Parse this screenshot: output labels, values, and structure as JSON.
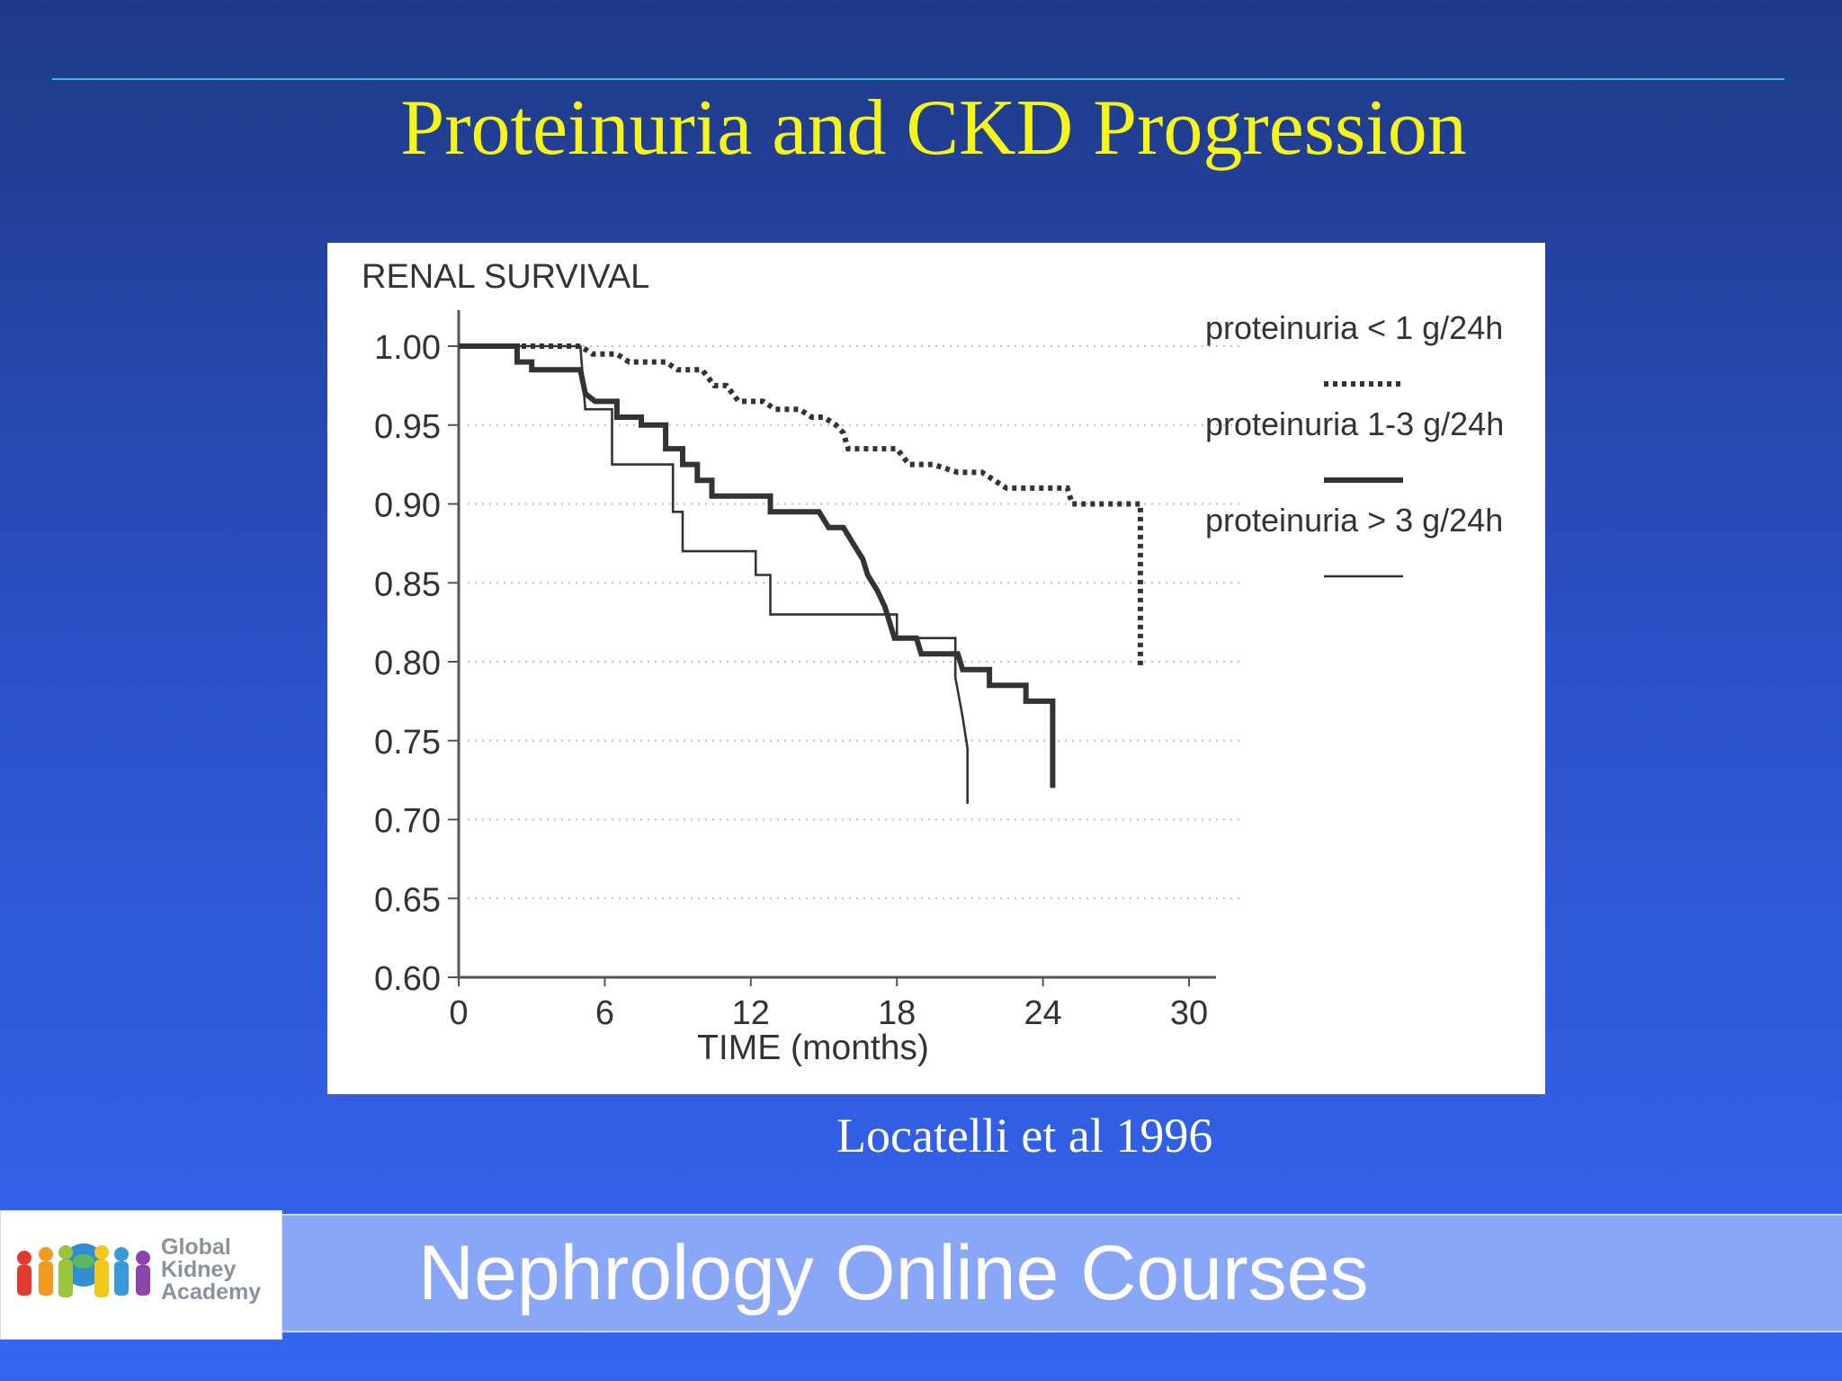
{
  "slide": {
    "title": "Proteinuria and CKD Progression",
    "citation": "Locatelli et al 1996",
    "footer": "Nephrology Online Courses",
    "logo": {
      "line1": "Global",
      "line2": "Kidney",
      "line3": "Academy",
      "icon": "people-circle-icon"
    },
    "colors": {
      "title": "#f5f51a",
      "rule": "#2cc4d8",
      "footer_band": "#8aa6f6"
    }
  },
  "chart_data": {
    "type": "line",
    "title": "RENAL SURVIVAL",
    "xlabel": "TIME (months)",
    "ylabel": "",
    "xlim": [
      0,
      30
    ],
    "ylim": [
      0.6,
      1.0
    ],
    "x_ticks": [
      "0",
      "6",
      "12",
      "18",
      "24",
      "30"
    ],
    "y_ticks": [
      "1.00",
      "0.95",
      "0.90",
      "0.85",
      "0.80",
      "0.75",
      "0.70",
      "0.65",
      "0.60"
    ],
    "grid": "dotted-horizontal",
    "legend_position": "right",
    "series": [
      {
        "name": "proteinuria < 1 g/24h",
        "style": "dotted",
        "points": [
          [
            0,
            1.0
          ],
          [
            5,
            1.0
          ],
          [
            5.5,
            0.995
          ],
          [
            6.5,
            0.995
          ],
          [
            7,
            0.99
          ],
          [
            8.5,
            0.99
          ],
          [
            9,
            0.985
          ],
          [
            10,
            0.985
          ],
          [
            10.5,
            0.975
          ],
          [
            11,
            0.975
          ],
          [
            11.5,
            0.965
          ],
          [
            12.5,
            0.965
          ],
          [
            13,
            0.96
          ],
          [
            14,
            0.96
          ],
          [
            14.5,
            0.955
          ],
          [
            15,
            0.955
          ],
          [
            15.5,
            0.95
          ],
          [
            15.8,
            0.945
          ],
          [
            16,
            0.935
          ],
          [
            18,
            0.935
          ],
          [
            18.5,
            0.925
          ],
          [
            19.5,
            0.925
          ],
          [
            20.5,
            0.92
          ],
          [
            21.5,
            0.92
          ],
          [
            22,
            0.915
          ],
          [
            22.5,
            0.91
          ],
          [
            25,
            0.91
          ],
          [
            25.2,
            0.9
          ],
          [
            26,
            0.9
          ],
          [
            26.2,
            0.9
          ],
          [
            28,
            0.9
          ],
          [
            28,
            0.795
          ]
        ]
      },
      {
        "name": "proteinuria 1-3 g/24h",
        "style": "thick",
        "points": [
          [
            0,
            1.0
          ],
          [
            2.4,
            1.0
          ],
          [
            2.4,
            0.99
          ],
          [
            3,
            0.99
          ],
          [
            3,
            0.985
          ],
          [
            5,
            0.985
          ],
          [
            5.2,
            0.97
          ],
          [
            5.6,
            0.965
          ],
          [
            6.5,
            0.965
          ],
          [
            6.5,
            0.955
          ],
          [
            7.5,
            0.955
          ],
          [
            7.5,
            0.95
          ],
          [
            8.5,
            0.95
          ],
          [
            8.5,
            0.935
          ],
          [
            9.2,
            0.935
          ],
          [
            9.2,
            0.925
          ],
          [
            9.8,
            0.925
          ],
          [
            9.8,
            0.915
          ],
          [
            10.4,
            0.915
          ],
          [
            10.4,
            0.905
          ],
          [
            12.8,
            0.905
          ],
          [
            12.8,
            0.895
          ],
          [
            14.8,
            0.895
          ],
          [
            15.2,
            0.885
          ],
          [
            15.8,
            0.885
          ],
          [
            16.2,
            0.875
          ],
          [
            16.6,
            0.865
          ],
          [
            16.8,
            0.855
          ],
          [
            17.2,
            0.845
          ],
          [
            17.5,
            0.835
          ],
          [
            17.7,
            0.825
          ],
          [
            17.9,
            0.815
          ],
          [
            18.8,
            0.815
          ],
          [
            19,
            0.805
          ],
          [
            20.5,
            0.805
          ],
          [
            20.7,
            0.795
          ],
          [
            21.8,
            0.795
          ],
          [
            21.8,
            0.785
          ],
          [
            23.3,
            0.785
          ],
          [
            23.3,
            0.775
          ],
          [
            24.4,
            0.775
          ],
          [
            24.4,
            0.72
          ]
        ]
      },
      {
        "name": "proteinuria > 3 g/24h",
        "style": "thin",
        "points": [
          [
            0,
            1.0
          ],
          [
            5,
            1.0
          ],
          [
            5.2,
            0.96
          ],
          [
            6.3,
            0.96
          ],
          [
            6.3,
            0.925
          ],
          [
            8.8,
            0.925
          ],
          [
            8.8,
            0.895
          ],
          [
            9.2,
            0.895
          ],
          [
            9.2,
            0.87
          ],
          [
            12.2,
            0.87
          ],
          [
            12.2,
            0.855
          ],
          [
            12.8,
            0.855
          ],
          [
            12.8,
            0.83
          ],
          [
            18,
            0.83
          ],
          [
            18,
            0.815
          ],
          [
            20.4,
            0.815
          ],
          [
            20.4,
            0.79
          ],
          [
            20.7,
            0.765
          ],
          [
            20.9,
            0.745
          ],
          [
            20.9,
            0.71
          ]
        ]
      }
    ]
  }
}
